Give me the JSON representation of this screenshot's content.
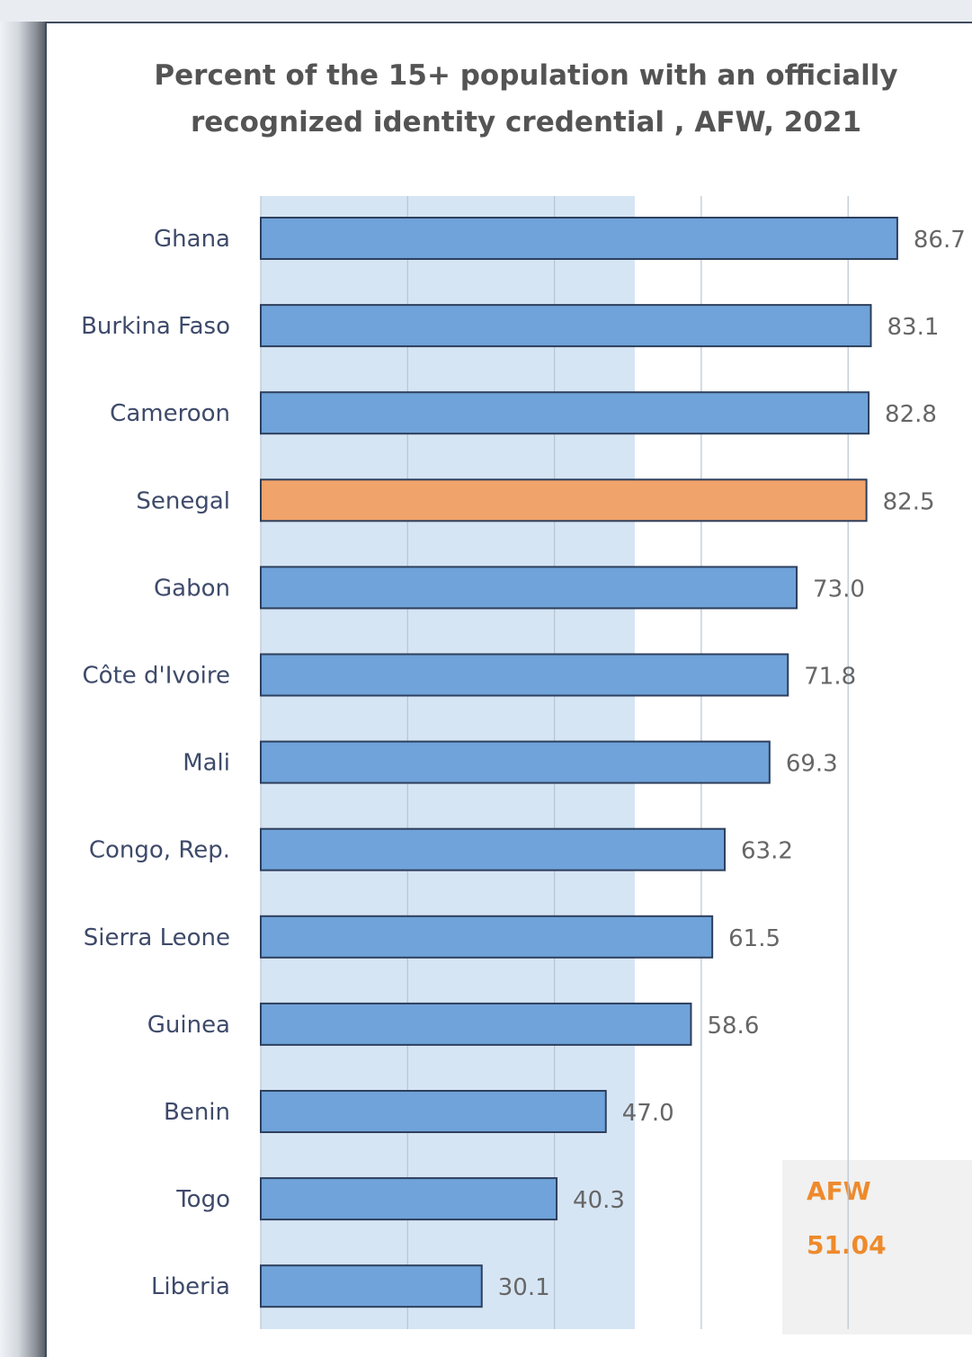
{
  "chart_data": {
    "type": "bar",
    "orientation": "horizontal",
    "title": "Percent of the 15+ population with an officially recognized identity credential , AFW, 2021",
    "categories": [
      "Ghana",
      "Burkina Faso",
      "Cameroon",
      "Senegal",
      "Gabon",
      "Côte d'Ivoire",
      "Mali",
      "Congo, Rep.",
      "Sierra Leone",
      "Guinea",
      "Benin",
      "Togo",
      "Liberia"
    ],
    "values": [
      86.7,
      83.1,
      82.8,
      82.5,
      73.0,
      71.8,
      69.3,
      63.2,
      61.5,
      58.6,
      47.0,
      40.3,
      30.1
    ],
    "value_labels": [
      "86.7",
      "83.1",
      "82.8",
      "82.5",
      "73.0",
      "71.8",
      "69.3",
      "63.2",
      "61.5",
      "58.6",
      "47.0",
      "40.3",
      "30.1"
    ],
    "highlight": "Senegal",
    "xlim": [
      0,
      100
    ],
    "grid": true,
    "colors": {
      "bar": "#6fa3d9",
      "highlight": "#f0a36a",
      "shade": "#cfe0f2"
    },
    "annotation": {
      "label": "AFW",
      "value": "51.04"
    }
  }
}
